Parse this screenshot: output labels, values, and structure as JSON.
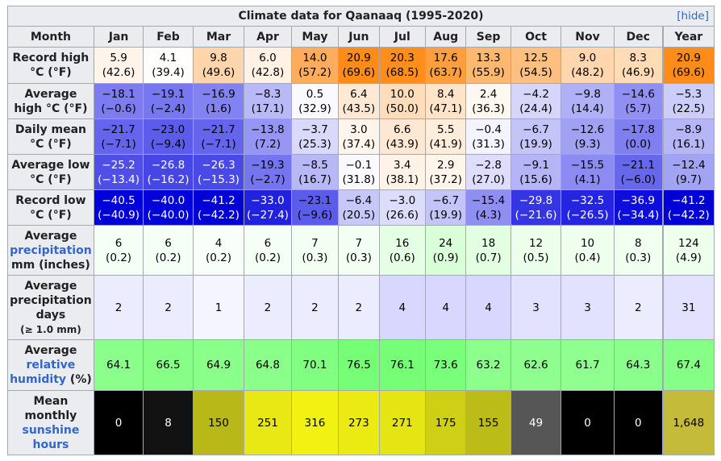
{
  "caption": {
    "title": "Climate data for Qaanaaq (1995-2020)",
    "hide": "[hide]"
  },
  "header": {
    "month": "Month",
    "months": [
      "Jan",
      "Feb",
      "Mar",
      "Apr",
      "May",
      "Jun",
      "Jul",
      "Aug",
      "Sep",
      "Oct",
      "Nov",
      "Dec"
    ],
    "year": "Year"
  },
  "rows": [
    {
      "key": "record_high",
      "label_lines": [
        "Record high",
        "°C (°F)"
      ],
      "height": 45,
      "values": [
        [
          "5.9",
          "(42.6)"
        ],
        [
          "4.1",
          "(39.4)"
        ],
        [
          "9.8",
          "(49.6)"
        ],
        [
          "6.0",
          "(42.8)"
        ],
        [
          "14.0",
          "(57.2)"
        ],
        [
          "20.9",
          "(69.6)"
        ],
        [
          "20.3",
          "(68.5)"
        ],
        [
          "17.6",
          "(63.7)"
        ],
        [
          "13.3",
          "(55.9)"
        ],
        [
          "12.5",
          "(54.5)"
        ],
        [
          "9.0",
          "(48.2)"
        ],
        [
          "8.3",
          "(46.9)"
        ],
        [
          "20.9",
          "(69.6)"
        ]
      ],
      "colors": [
        "#fff4ea",
        "#fffefc",
        "#ffd5ac",
        "#fff2e5",
        "#ffad5c",
        "#ff8b18",
        "#ff8e1d",
        "#ff9e3d",
        "#ffb870",
        "#ffbf7e",
        "#ffd6ad",
        "#ffdbb6",
        "#ff8b18"
      ],
      "text_colors": [
        "#000000",
        "#000000",
        "#000000",
        "#000000",
        "#000000",
        "#000000",
        "#000000",
        "#000000",
        "#000000",
        "#000000",
        "#000000",
        "#000000",
        "#000000"
      ]
    },
    {
      "key": "avg_high",
      "label_lines": [
        "Average",
        "high °C (°F)"
      ],
      "height": 44,
      "values": [
        [
          "−18.1",
          "(−0.6)"
        ],
        [
          "−19.1",
          "(−2.4)"
        ],
        [
          "−16.9",
          "(1.6)"
        ],
        [
          "−8.3",
          "(17.1)"
        ],
        [
          "0.5",
          "(32.9)"
        ],
        [
          "6.4",
          "(43.5)"
        ],
        [
          "10.0",
          "(50.0)"
        ],
        [
          "8.4",
          "(47.1)"
        ],
        [
          "2.4",
          "(36.3)"
        ],
        [
          "−4.2",
          "(24.4)"
        ],
        [
          "−9.8",
          "(14.4)"
        ],
        [
          "−14.6",
          "(5.7)"
        ],
        [
          "−5.3",
          "(22.5)"
        ]
      ],
      "colors": [
        "#7c7cf0",
        "#7777ef",
        "#8282f1",
        "#b9b9f7",
        "#f9f9ff",
        "#ffe9d5",
        "#ffddbb",
        "#ffe4c9",
        "#fff8f1",
        "#d6d6fb",
        "#b0b0f6",
        "#9090f3",
        "#cdcdf9"
      ],
      "text_colors": [
        "#000000",
        "#000000",
        "#000000",
        "#000000",
        "#000000",
        "#000000",
        "#000000",
        "#000000",
        "#000000",
        "#000000",
        "#000000",
        "#000000",
        "#000000"
      ]
    },
    {
      "key": "daily_mean",
      "label_lines": [
        "Daily mean",
        "°C (°F)"
      ],
      "height": 44,
      "values": [
        [
          "−21.7",
          "(−7.1)"
        ],
        [
          "−23.0",
          "(−9.4)"
        ],
        [
          "−21.7",
          "(−7.1)"
        ],
        [
          "−13.8",
          "(7.2)"
        ],
        [
          "−3.7",
          "(25.3)"
        ],
        [
          "3.0",
          "(37.4)"
        ],
        [
          "6.6",
          "(43.9)"
        ],
        [
          "5.5",
          "(41.9)"
        ],
        [
          "−0.4",
          "(31.3)"
        ],
        [
          "−6.7",
          "(19.9)"
        ],
        [
          "−12.6",
          "(9.3)"
        ],
        [
          "−17.8",
          "(0.0)"
        ],
        [
          "−8.9",
          "(16.1)"
        ]
      ],
      "colors": [
        "#6464ec",
        "#5c5ceb",
        "#6464ec",
        "#9595f3",
        "#d9d9fb",
        "#fff5ec",
        "#ffe8d3",
        "#ffeddc",
        "#f4f4fe",
        "#c4c4f8",
        "#a1a1f4",
        "#7f7ff0",
        "#b6b6f7"
      ],
      "text_colors": [
        "#000000",
        "#000000",
        "#000000",
        "#000000",
        "#000000",
        "#000000",
        "#000000",
        "#000000",
        "#000000",
        "#000000",
        "#000000",
        "#000000",
        "#000000"
      ]
    },
    {
      "key": "avg_low",
      "label_lines": [
        "Average low",
        "°C (°F)"
      ],
      "height": 44,
      "values": [
        [
          "−25.2",
          "(−13.4)"
        ],
        [
          "−26.8",
          "(−16.2)"
        ],
        [
          "−26.3",
          "(−15.3)"
        ],
        [
          "−19.3",
          "(−2.7)"
        ],
        [
          "−8.5",
          "(16.7)"
        ],
        [
          "−0.1",
          "(31.8)"
        ],
        [
          "3.4",
          "(38.1)"
        ],
        [
          "2.9",
          "(37.2)"
        ],
        [
          "−2.8",
          "(27.0)"
        ],
        [
          "−9.1",
          "(15.6)"
        ],
        [
          "−15.5",
          "(4.1)"
        ],
        [
          "−21.1",
          "(−6.0)"
        ],
        [
          "−12.4",
          "(9.7)"
        ]
      ],
      "colors": [
        "#4f4fe8",
        "#4646e7",
        "#4949e7",
        "#7575ef",
        "#b8b8f7",
        "#f9f9ff",
        "#fff3e7",
        "#fff5eb",
        "#dedefc",
        "#b4b4f6",
        "#8b8bf2",
        "#6767ec",
        "#a3a3f4"
      ],
      "text_colors": [
        "#ffffff",
        "#ffffff",
        "#ffffff",
        "#000000",
        "#000000",
        "#000000",
        "#000000",
        "#000000",
        "#000000",
        "#000000",
        "#000000",
        "#000000",
        "#000000"
      ]
    },
    {
      "key": "record_low",
      "label_lines": [
        "Record low",
        "°C (°F)"
      ],
      "height": 44,
      "values": [
        [
          "−40.5",
          "(−40.9)"
        ],
        [
          "−40.0",
          "(−40.0)"
        ],
        [
          "−41.2",
          "(−42.2)"
        ],
        [
          "−33.0",
          "(−27.4)"
        ],
        [
          "−23.1",
          "(−9.6)"
        ],
        [
          "−6.4",
          "(20.5)"
        ],
        [
          "−3.0",
          "(26.6)"
        ],
        [
          "−6.7",
          "(19.9)"
        ],
        [
          "−15.4",
          "(4.3)"
        ],
        [
          "−29.8",
          "(−21.6)"
        ],
        [
          "−32.5",
          "(−26.5)"
        ],
        [
          "−36.9",
          "(−34.4)"
        ],
        [
          "−41.2",
          "(−42.2)"
        ]
      ],
      "colors": [
        "#0000d9",
        "#0202da",
        "#0000d7",
        "#2121e0",
        "#5c5ceb",
        "#c7c7f9",
        "#dcdcfb",
        "#c4c4f8",
        "#8e8ef3",
        "#3535e3",
        "#2525e1",
        "#0e0edc",
        "#0000d7"
      ],
      "text_colors": [
        "#ffffff",
        "#ffffff",
        "#ffffff",
        "#ffffff",
        "#000000",
        "#000000",
        "#000000",
        "#000000",
        "#000000",
        "#ffffff",
        "#ffffff",
        "#ffffff",
        "#ffffff"
      ]
    },
    {
      "key": "avg_precip",
      "label_lines": [
        "Average",
        "precipitation",
        "mm (inches)"
      ],
      "link_line": 1,
      "height": 62,
      "values": [
        [
          "6",
          "(0.2)"
        ],
        [
          "6",
          "(0.2)"
        ],
        [
          "4",
          "(0.2)"
        ],
        [
          "6",
          "(0.2)"
        ],
        [
          "7",
          "(0.3)"
        ],
        [
          "7",
          "(0.3)"
        ],
        [
          "16",
          "(0.6)"
        ],
        [
          "24",
          "(0.9)"
        ],
        [
          "18",
          "(0.7)"
        ],
        [
          "12",
          "(0.5)"
        ],
        [
          "10",
          "(0.4)"
        ],
        [
          "8",
          "(0.3)"
        ],
        [
          "124",
          "(4.9)"
        ]
      ],
      "colors": [
        "#f5fff5",
        "#f5fff5",
        "#f8fff8",
        "#f5fff5",
        "#f3fff3",
        "#f3fff3",
        "#e5ffe5",
        "#d8ffd8",
        "#e2ffe2",
        "#ebffeb",
        "#eeffee",
        "#f1fff1",
        "#eeffee"
      ],
      "text_colors": [
        "#000000",
        "#000000",
        "#000000",
        "#000000",
        "#000000",
        "#000000",
        "#000000",
        "#000000",
        "#000000",
        "#000000",
        "#000000",
        "#000000",
        "#000000"
      ]
    },
    {
      "key": "precip_days",
      "label_lines": [
        "Average",
        "precipitation",
        "days",
        "(≥ 1.0 mm)"
      ],
      "small_line": 3,
      "height": 80,
      "values": [
        [
          "2"
        ],
        [
          "2"
        ],
        [
          "1"
        ],
        [
          "2"
        ],
        [
          "2"
        ],
        [
          "2"
        ],
        [
          "4"
        ],
        [
          "4"
        ],
        [
          "4"
        ],
        [
          "3"
        ],
        [
          "3"
        ],
        [
          "2"
        ],
        [
          "31"
        ]
      ],
      "colors": [
        "#ececff",
        "#ececff",
        "#f5f5ff",
        "#ececff",
        "#ececff",
        "#ececff",
        "#d8d8ff",
        "#d8d8ff",
        "#d8d8ff",
        "#e2e2ff",
        "#e2e2ff",
        "#ececff",
        "#e2e2ff"
      ],
      "text_colors": [
        "#000000",
        "#000000",
        "#000000",
        "#000000",
        "#000000",
        "#000000",
        "#000000",
        "#000000",
        "#000000",
        "#000000",
        "#000000",
        "#000000",
        "#000000"
      ]
    },
    {
      "key": "humidity",
      "label_lines": [
        "Average",
        "relative",
        "humidity (%)"
      ],
      "link_line": 1,
      "link_word": "humidity",
      "height": 63,
      "values": [
        [
          "64.1"
        ],
        [
          "66.5"
        ],
        [
          "64.9"
        ],
        [
          "64.8"
        ],
        [
          "70.1"
        ],
        [
          "76.5"
        ],
        [
          "76.1"
        ],
        [
          "73.6"
        ],
        [
          "63.2"
        ],
        [
          "62.6"
        ],
        [
          "61.7"
        ],
        [
          "64.3"
        ],
        [
          "67.4"
        ]
      ],
      "colors": [
        "#8bff8b",
        "#87ff87",
        "#8aff8a",
        "#8aff8a",
        "#80ff80",
        "#76ff76",
        "#76ff76",
        "#7aff7a",
        "#8dff8d",
        "#8eff8e",
        "#8fff8f",
        "#8bff8b",
        "#85ff85"
      ],
      "text_colors": [
        "#000000",
        "#000000",
        "#000000",
        "#000000",
        "#000000",
        "#000000",
        "#000000",
        "#000000",
        "#000000",
        "#000000",
        "#000000",
        "#000000",
        "#000000"
      ]
    },
    {
      "key": "sunshine",
      "label_lines": [
        "Mean",
        "monthly",
        "sunshine",
        "hours"
      ],
      "link_lines": [
        2,
        3
      ],
      "height": 80,
      "values": [
        [
          "0"
        ],
        [
          "8"
        ],
        [
          "150"
        ],
        [
          "251"
        ],
        [
          "316"
        ],
        [
          "273"
        ],
        [
          "271"
        ],
        [
          "175"
        ],
        [
          "155"
        ],
        [
          "49"
        ],
        [
          "0"
        ],
        [
          "0"
        ],
        [
          "1,648"
        ]
      ],
      "colors": [
        "#000000",
        "#121212",
        "#b8b818",
        "#e8e814",
        "#f2f212",
        "#ebeb13",
        "#e5e514",
        "#cfcf16",
        "#bcbc18",
        "#565656",
        "#000000",
        "#000000",
        "#c4bb3a"
      ],
      "text_colors": [
        "#ffffff",
        "#ffffff",
        "#000000",
        "#000000",
        "#000000",
        "#000000",
        "#000000",
        "#000000",
        "#000000",
        "#ffffff",
        "#ffffff",
        "#ffffff",
        "#000000"
      ]
    }
  ]
}
